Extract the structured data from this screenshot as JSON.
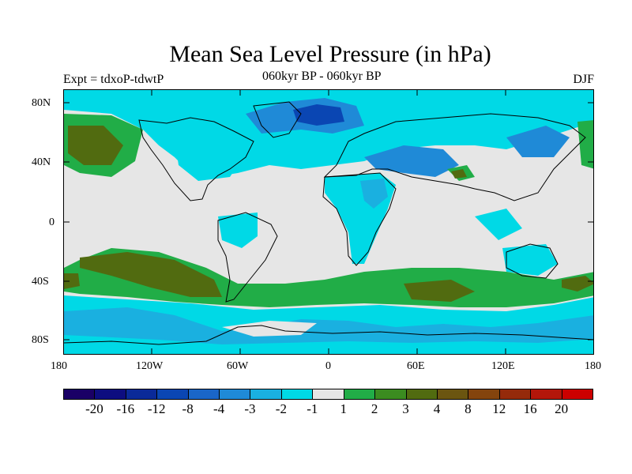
{
  "title": "Mean Sea Level Pressure (in hPa)",
  "subtitle": {
    "left": "Expt = tdxoP-tdwtP",
    "center": "060kyr BP - 060kyr BP",
    "right": "DJF"
  },
  "axes": {
    "y_ticks": [
      "80N",
      "40N",
      "0",
      "40S",
      "80S"
    ],
    "x_ticks": [
      "180",
      "120W",
      "60W",
      "0",
      "60E",
      "120E",
      "180"
    ]
  },
  "colorbar": {
    "colors": [
      "#1a0066",
      "#0d0d80",
      "#0a2a99",
      "#0a46b3",
      "#1a66c8",
      "#1f8ad7",
      "#1ab0e0",
      "#00d9e6",
      "#e6e6e6",
      "#21ad47",
      "#3b8c20",
      "#516b10",
      "#6b5510",
      "#84440d",
      "#952a0a",
      "#b3160a",
      "#cc0000"
    ],
    "labels": [
      "-20",
      "-16",
      "-12",
      "-8",
      "-4",
      "-3",
      "-2",
      "-1",
      "1",
      "2",
      "3",
      "4",
      "8",
      "12",
      "16",
      "20"
    ]
  }
}
